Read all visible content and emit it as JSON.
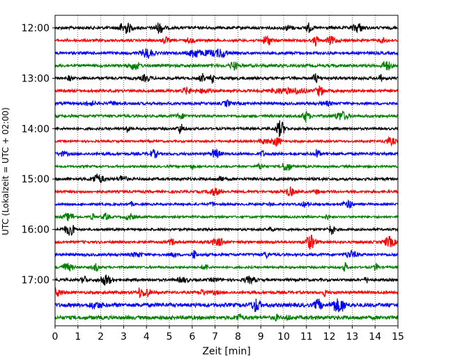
{
  "chart_data": {
    "type": "line",
    "title": "",
    "xlabel": "Zeit  [min]",
    "ylabel": "UTC (Lokalzeit = UTC + 02:00)",
    "xlim": [
      0,
      15
    ],
    "x_ticks": [
      0,
      1,
      2,
      3,
      4,
      5,
      6,
      7,
      8,
      9,
      10,
      11,
      12,
      13,
      14,
      15
    ],
    "y_tick_labels": [
      "12:00",
      "13:00",
      "14:00",
      "15:00",
      "16:00",
      "17:00"
    ],
    "y_tick_rows": [
      0,
      4,
      8,
      12,
      16,
      20
    ],
    "trace_row_count": 24,
    "row_interval_minutes": 15,
    "first_row_start": "12:00",
    "color_cycle": [
      "#000000",
      "#ff0000",
      "#0000ff",
      "#008000"
    ],
    "grid": "vertical dotted lines at each minute",
    "legend": "none"
  }
}
